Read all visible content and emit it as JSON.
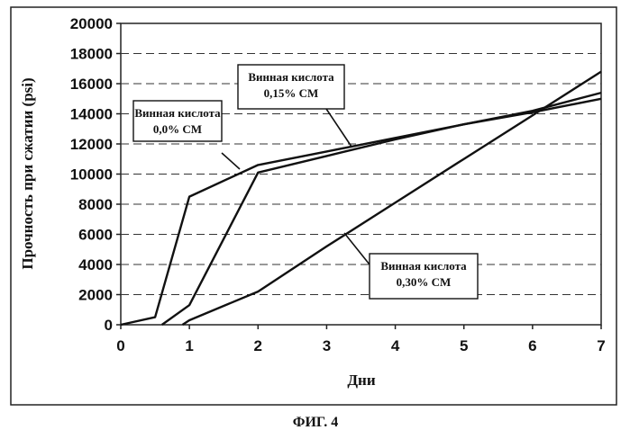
{
  "chart_data": {
    "type": "line",
    "xlabel": "Дни",
    "ylabel": "Прочность при сжатии (psi)",
    "xlim": [
      0,
      7
    ],
    "ylim": [
      0,
      20000
    ],
    "xticks": [
      "0",
      "1",
      "2",
      "3",
      "4",
      "5",
      "6",
      "7"
    ],
    "yticks": [
      "0",
      "2000",
      "4000",
      "6000",
      "8000",
      "10000",
      "12000",
      "14000",
      "16000",
      "18000",
      "20000"
    ],
    "grid": "horizontal-dashed",
    "series": [
      {
        "name": "Винная кислота 0,0% СМ",
        "label_lines": [
          "Винная кислота",
          "0,0% СМ"
        ],
        "x": [
          0,
          0.5,
          1,
          2,
          3,
          4,
          5,
          6,
          7
        ],
        "y": [
          0,
          500,
          8500,
          10600,
          11500,
          12400,
          13300,
          14100,
          15000
        ]
      },
      {
        "name": "Винная кислота 0,15% СМ",
        "label_lines": [
          "Винная кислота",
          "0,15% СМ"
        ],
        "x": [
          0.6,
          1,
          2,
          3,
          4,
          5,
          6,
          7
        ],
        "y": [
          0,
          1300,
          10100,
          11200,
          12300,
          13300,
          14200,
          15400
        ]
      },
      {
        "name": "Винная кислота 0,30% СМ",
        "label_lines": [
          "Винная кислота",
          "0,30% СМ"
        ],
        "x": [
          0.9,
          1,
          2,
          3,
          4,
          5,
          6,
          7
        ],
        "y": [
          0,
          300,
          2200,
          5200,
          8100,
          11000,
          13900,
          16800
        ]
      }
    ]
  },
  "caption": "ФИГ. 4"
}
